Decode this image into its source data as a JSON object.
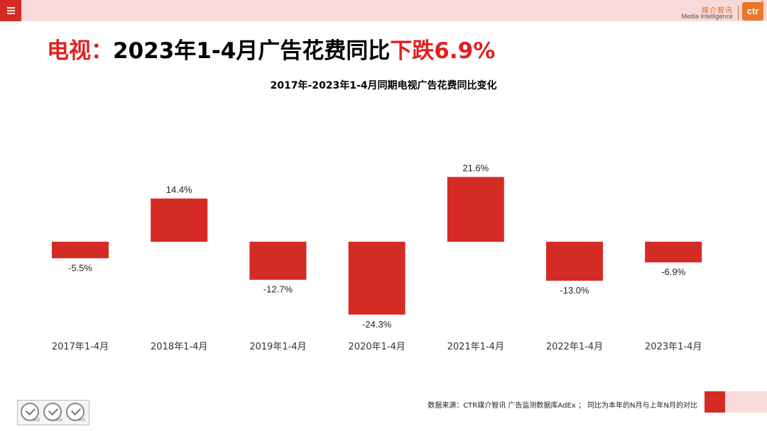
{
  "header": {
    "menu_icon": "hamburger-menu-icon",
    "logo_cn": "媒介智讯",
    "logo_en": "Media Intelligence",
    "logo_brand": "ctr"
  },
  "headline": {
    "prefix": "电视：",
    "middle": "2023年1-4月广告花费同比",
    "highlight": "下跌6.9%"
  },
  "chart_data": {
    "type": "bar",
    "title": "2017年-2023年1-4月同期电视广告花费同比变化",
    "categories": [
      "2017年1-4月",
      "2018年1-4月",
      "2019年1-4月",
      "2020年1-4月",
      "2021年1-4月",
      "2022年1-4月",
      "2023年1-4月"
    ],
    "values": [
      -5.5,
      14.4,
      -12.7,
      -24.3,
      21.6,
      -13.0,
      -6.9
    ],
    "value_labels": [
      "-5.5%",
      "14.4%",
      "-12.7%",
      "-24.3%",
      "21.6%",
      "-13.0%",
      "-6.9%"
    ],
    "unit": "%",
    "xlabel": "",
    "ylabel": "",
    "grid": false,
    "bar_color": "#d42b25"
  },
  "footer": {
    "source": "数据来源：CTR媒介智讯 广告监测数据库AdEx ；  同比为本年的N月与上年N月的对比",
    "badge_label": "SGS"
  },
  "colors": {
    "accent_red": "#d42b25",
    "headline_red": "#e02020",
    "topbar_pink": "#f8dada",
    "logo_orange": "#e8782a"
  }
}
